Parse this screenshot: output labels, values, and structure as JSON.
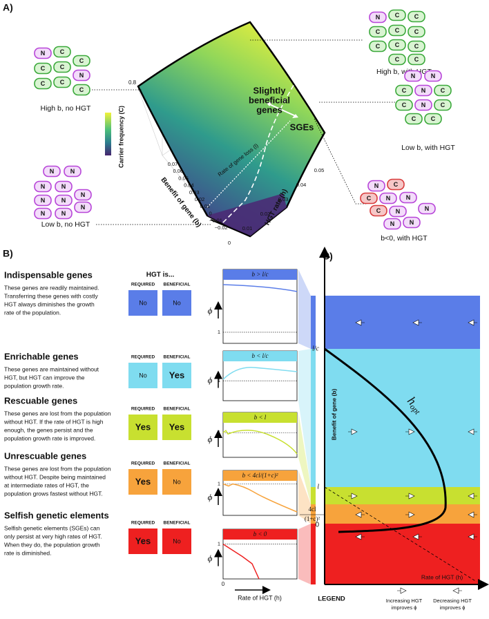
{
  "panel_a": {
    "label": "A)",
    "z_axis": "Carrier frequency (C)",
    "z_ticks": [
      "0.8"
    ],
    "b_axis": "Benefit of gene (b)",
    "b_ticks": [
      "0.07",
      "0.06",
      "0.05",
      "0.04",
      "0.03",
      "0.02",
      "0.01",
      "0",
      "−0.01",
      "−0.02"
    ],
    "h_axis": "HGT rate (h)",
    "h_ticks": [
      "0",
      "0.01",
      "0.02",
      "0.03",
      "0.04",
      "0.05"
    ],
    "annotations": [
      "Slightly",
      "beneficial",
      "genes",
      "SGEs",
      "Rate of gene loss (l)"
    ],
    "clusters": [
      {
        "caption": "High b, no HGT",
        "cells": [
          "N",
          "C",
          "C",
          "C",
          "C",
          "N",
          "C",
          "C",
          "C"
        ]
      },
      {
        "caption": "High b, with HGT",
        "cells": [
          "N",
          "C",
          "C",
          "C",
          "C",
          "C",
          "C",
          "C",
          "C",
          "C",
          "C"
        ]
      },
      {
        "caption": "Low b, with HGT",
        "cells": [
          "N",
          "N",
          "C",
          "N",
          "C",
          "N",
          "C",
          "C",
          "C",
          "C"
        ]
      },
      {
        "caption": "b<0, with HGT",
        "cells": [
          "N",
          "C",
          "C",
          "N",
          "N",
          "N",
          "C",
          "N",
          "N",
          "N"
        ]
      },
      {
        "caption": "Low b, no HGT",
        "cells": [
          "N",
          "N",
          "N",
          "N",
          "N",
          "N",
          "N",
          "N",
          "N",
          "N"
        ]
      }
    ]
  },
  "panel_b": {
    "label": "B)",
    "header": "HGT is...",
    "columns": [
      "REQUIRED",
      "BENEFICIAL"
    ],
    "phi_label": "ϕ",
    "one_label": "1",
    "x_origin": "0",
    "x_axis": "Rate of HGT (h)",
    "rows": [
      {
        "title": "Indispensable genes",
        "color": "#5a7de8",
        "title_color": "#3f63dc",
        "description": [
          "These genes are readily maintained.",
          "Transferring these genes with costly",
          "HGT always diminishes the growth",
          "rate of the population."
        ],
        "required": "No",
        "beneficial": "No",
        "condition": "b > l/c"
      },
      {
        "title": "Enrichable genes",
        "color": "#7fdcf0",
        "title_color": "#4cc6e3",
        "description": [
          "These genes are maintained without",
          "HGT, but HGT can improve the",
          "population growth rate."
        ],
        "required": "No",
        "beneficial": "Yes",
        "condition": "b < l/c"
      },
      {
        "title": "Rescuable genes",
        "color": "#c8e030",
        "title_color": "#b7cc14",
        "description": [
          "These genes are lost from the population",
          "without HGT. If the rate of HGT is high",
          "enough, the genes persist and the",
          "population growth rate is improved."
        ],
        "required": "Yes",
        "beneficial": "Yes",
        "condition": "b < l"
      },
      {
        "title": "Unrescuable genes",
        "color": "#f7a33c",
        "title_color": "#f08a20",
        "description": [
          "These genes are lost from the population",
          "without HGT. Despite being maintained",
          "at intermediate rates of HGT, the",
          "population grows fastest without HGT."
        ],
        "required": "Yes",
        "beneficial": "No",
        "condition": "b < 4cl/(1+c)²"
      },
      {
        "title": "Selfish genetic elements",
        "color": "#ee2020",
        "title_color": "#e41818",
        "description": [
          "Selfish genetic elements (SGEs) can",
          "only persist at very high rates of HGT.",
          "When they do, the population growth",
          " rate is diminished."
        ],
        "required": "Yes",
        "beneficial": "No",
        "condition": "b < 0"
      }
    ]
  },
  "panel_c": {
    "label": "C)",
    "y_axis": "Benefit of gene (b)",
    "x_axis": "Rate of HGT (h)",
    "tick_lc": "l/c",
    "tick_l": "l",
    "tick_frac": {
      "numerator": "4cl",
      "denominator": "(1+c)²"
    },
    "tick_zero": "0",
    "curve_label": {
      "symbol": "h",
      "subscript": "opt"
    },
    "legend_title": "LEGEND",
    "legend": [
      [
        "Increasing HGT",
        "improves ϕ"
      ],
      [
        "Decreasing HGT",
        "improves ϕ"
      ]
    ]
  }
}
